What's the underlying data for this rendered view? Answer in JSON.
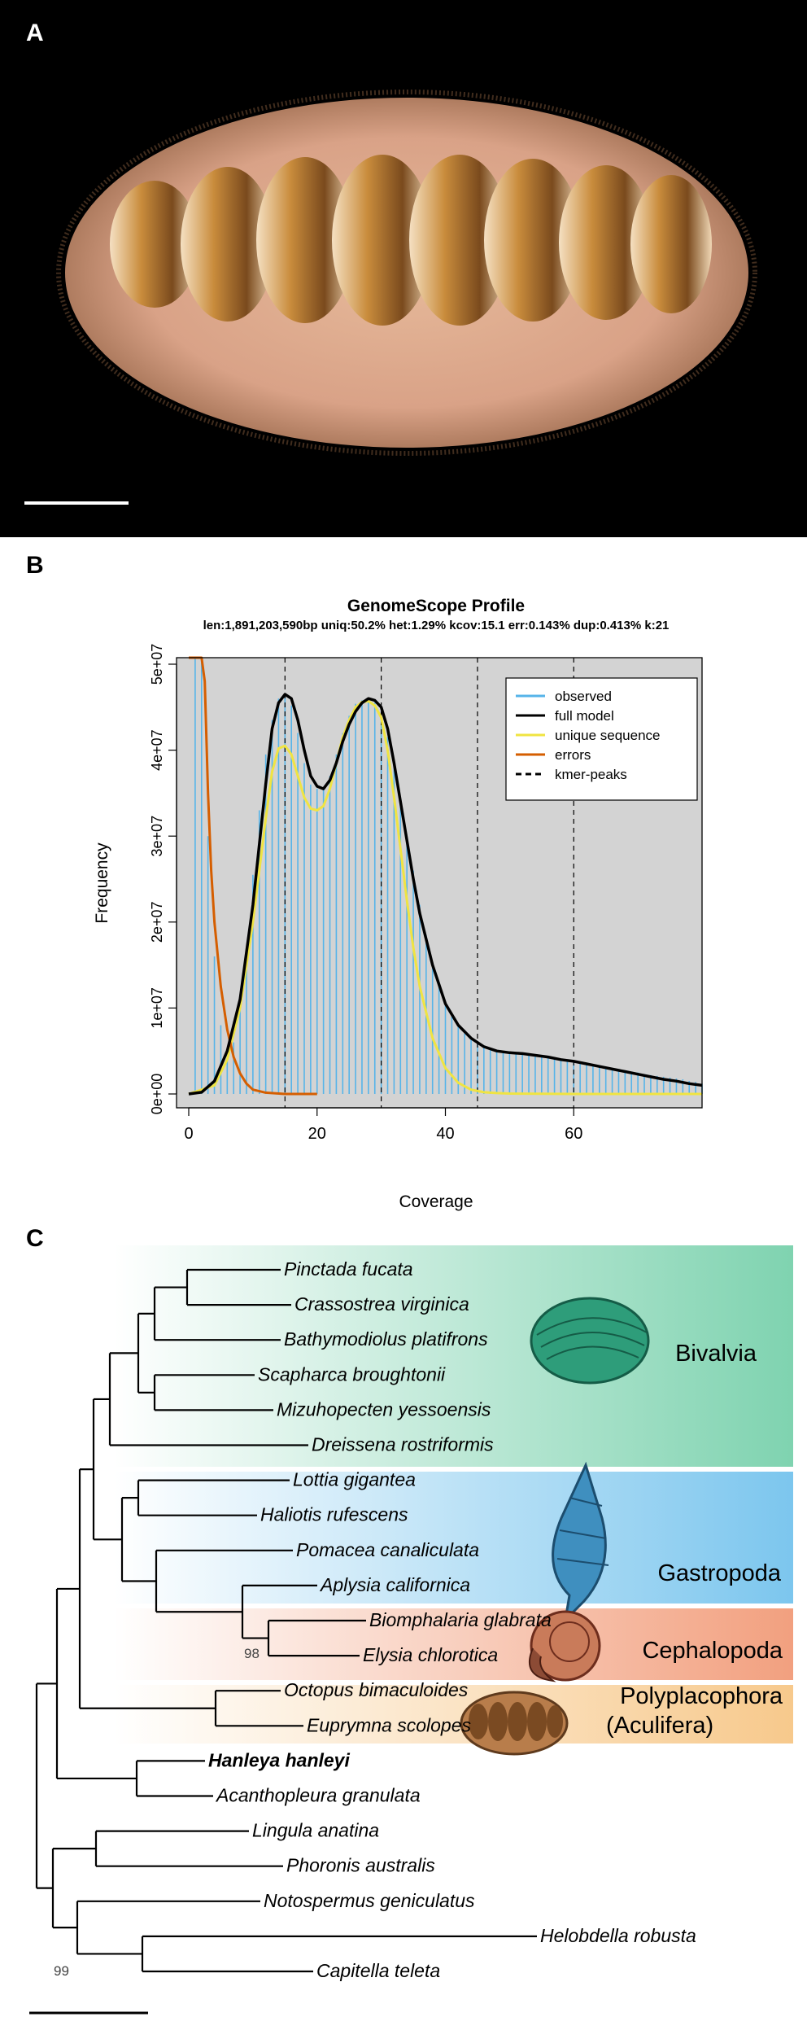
{
  "panels": {
    "a": {
      "label": "A",
      "image": "photo of Hanleya hanleyi chiton, dorsal view, on black background",
      "scale_bar": true
    },
    "b": {
      "label": "B",
      "title": "GenomeScope Profile",
      "subtitle": "len:1,891,203,590bp uniq:50.2%  het:1.29% kcov:15.1 err:0.143%  dup:0.413%  k:21"
    },
    "c": {
      "label": "C"
    }
  },
  "chart_data": {
    "type": "bar",
    "xlabel": "Coverage",
    "ylabel": "Frequency",
    "xlim": [
      0,
      80
    ],
    "ylim": [
      0,
      52000000
    ],
    "x_ticks": [
      0,
      20,
      40,
      60
    ],
    "x_tick_labels": [
      "0",
      "20",
      "40",
      "60"
    ],
    "y_ticks": [
      0,
      10000000,
      20000000,
      30000000,
      40000000,
      50000000
    ],
    "y_tick_labels": [
      "0e+00",
      "1e+07",
      "2e+07",
      "3e+07",
      "4e+07",
      "5e+07"
    ],
    "legend_position": "top-right",
    "legend": [
      {
        "label": "observed",
        "color": "#56b4e9",
        "style": "solid"
      },
      {
        "label": "full model",
        "color": "#000000",
        "style": "solid"
      },
      {
        "label": "unique sequence",
        "color": "#f0e442",
        "style": "solid"
      },
      {
        "label": "errors",
        "color": "#d55e00",
        "style": "solid"
      },
      {
        "label": "kmer-peaks",
        "color": "#000000",
        "style": "dashed"
      }
    ],
    "kmer_peaks": [
      15,
      30,
      45,
      60
    ],
    "series": [
      {
        "name": "observed",
        "x": [
          1,
          2,
          3,
          4,
          5,
          6,
          7,
          8,
          9,
          10,
          11,
          12,
          13,
          14,
          15,
          16,
          17,
          18,
          19,
          20,
          21,
          22,
          23,
          24,
          25,
          26,
          27,
          28,
          29,
          30,
          31,
          32,
          33,
          34,
          35,
          36,
          37,
          38,
          39,
          40,
          41,
          42,
          43,
          44,
          45,
          46,
          47,
          48,
          49,
          50,
          51,
          52,
          53,
          54,
          55,
          56,
          57,
          58,
          59,
          60,
          61,
          62,
          63,
          64,
          65,
          66,
          67,
          68,
          69,
          70,
          71,
          72,
          73,
          74,
          75,
          76,
          77,
          78,
          79,
          80
        ],
        "values": [
          52000000,
          52000000,
          30000000,
          16000000,
          8000000,
          5000000,
          6000000,
          10000000,
          17000000,
          25500000,
          33000000,
          39500000,
          43500000,
          46000000,
          46500000,
          45200000,
          42000000,
          38500000,
          36000000,
          35500000,
          35500000,
          37000000,
          39500000,
          42000000,
          44000000,
          45400000,
          45800000,
          46000000,
          45500000,
          44000000,
          41500000,
          38000000,
          34000000,
          30000000,
          26000000,
          22000000,
          18500000,
          15000000,
          12500000,
          10500000,
          9000000,
          8000000,
          7000000,
          6300000,
          5800000,
          5400000,
          5100000,
          5000000,
          4900000,
          4800000,
          4700000,
          4600000,
          4500000,
          4400000,
          4300000,
          4200000,
          4100000,
          4000000,
          3900000,
          3800000,
          3700000,
          3500000,
          3400000,
          3200000,
          3100000,
          3000000,
          2900000,
          2700000,
          2600000,
          2500000,
          2300000,
          2200000,
          2100000,
          2000000,
          1900000,
          1800000,
          1700000,
          1500000,
          1400000,
          1200000
        ]
      },
      {
        "name": "full model",
        "x": [
          0,
          2,
          4,
          6,
          8,
          10,
          12,
          13,
          14,
          15,
          16,
          17,
          18,
          19,
          20,
          21,
          22,
          23,
          24,
          25,
          26,
          27,
          28,
          29,
          30,
          31,
          32,
          33,
          34,
          35,
          36,
          38,
          40,
          42,
          44,
          46,
          48,
          50,
          52,
          54,
          56,
          58,
          60,
          62,
          64,
          66,
          68,
          70,
          72,
          74,
          76,
          78,
          80
        ],
        "values": [
          0,
          200000,
          1500000,
          5000000,
          11000000,
          22000000,
          36000000,
          42500000,
          45500000,
          46500000,
          46000000,
          43500000,
          40000000,
          37000000,
          35800000,
          35500000,
          36500000,
          38500000,
          41000000,
          43000000,
          44500000,
          45500000,
          46000000,
          45800000,
          45000000,
          42500000,
          38500000,
          34000000,
          29500000,
          25000000,
          21000000,
          15000000,
          10500000,
          8000000,
          6500000,
          5500000,
          5000000,
          4800000,
          4700000,
          4500000,
          4300000,
          4000000,
          3800000,
          3500000,
          3200000,
          2900000,
          2600000,
          2300000,
          2000000,
          1700000,
          1500000,
          1200000,
          1000000
        ]
      },
      {
        "name": "unique sequence",
        "x": [
          0,
          4,
          6,
          8,
          10,
          12,
          13,
          14,
          15,
          16,
          17,
          18,
          19,
          20,
          21,
          22,
          23,
          24,
          25,
          26,
          27,
          28,
          29,
          30,
          31,
          32,
          33,
          34,
          35,
          36,
          38,
          40,
          42,
          44,
          46,
          48,
          50,
          55,
          60,
          70,
          80
        ],
        "values": [
          0,
          1000000,
          4000000,
          10000000,
          20000000,
          32000000,
          37500000,
          40200000,
          40500000,
          39500000,
          37000000,
          34500000,
          33200000,
          33000000,
          33500000,
          35500000,
          38500000,
          41500000,
          43500000,
          45000000,
          45600000,
          45700000,
          45200000,
          43800000,
          40000000,
          34500000,
          28500000,
          22500000,
          17000000,
          12500000,
          6500000,
          3000000,
          1300000,
          500000,
          200000,
          100000,
          50000,
          20000,
          0,
          0,
          0
        ]
      },
      {
        "name": "errors",
        "x": [
          0,
          1,
          2,
          2.5,
          3,
          3.5,
          4,
          5,
          6,
          7,
          8,
          9,
          10,
          12,
          15,
          20
        ],
        "values": [
          52000000,
          52000000,
          52000000,
          48000000,
          35000000,
          26000000,
          20000000,
          12500000,
          7500000,
          4300000,
          2400000,
          1200000,
          500000,
          150000,
          0,
          0
        ]
      }
    ]
  },
  "phylogeny": {
    "bootstrap_labels": [
      "98",
      "99"
    ],
    "taxa": [
      {
        "name": "Pinctada fucata",
        "bold": false
      },
      {
        "name": "Crassostrea virginica",
        "bold": false
      },
      {
        "name": "Bathymodiolus platifrons",
        "bold": false
      },
      {
        "name": "Scapharca broughtonii",
        "bold": false
      },
      {
        "name": "Mizuhopecten yessoensis",
        "bold": false
      },
      {
        "name": "Dreissena rostriformis",
        "bold": false
      },
      {
        "name": "Lottia gigantea",
        "bold": false
      },
      {
        "name": "Haliotis rufescens",
        "bold": false
      },
      {
        "name": "Pomacea canaliculata",
        "bold": false
      },
      {
        "name": "Aplysia californica",
        "bold": false
      },
      {
        "name": "Biomphalaria glabrata",
        "bold": false
      },
      {
        "name": "Elysia chlorotica",
        "bold": false
      },
      {
        "name": "Octopus bimaculoides",
        "bold": false
      },
      {
        "name": "Euprymna scolopes",
        "bold": false
      },
      {
        "name": "Hanleya hanleyi",
        "bold": true
      },
      {
        "name": "Acanthopleura granulata",
        "bold": false
      },
      {
        "name": "Lingula anatina",
        "bold": false
      },
      {
        "name": "Phoronis australis",
        "bold": false
      },
      {
        "name": "Notospermus geniculatus",
        "bold": false
      },
      {
        "name": "Helobdella robusta",
        "bold": false
      },
      {
        "name": "Capitella teleta",
        "bold": false
      }
    ],
    "clades": [
      {
        "label": "Bivalvia",
        "color": "#7fd3b0"
      },
      {
        "label": "Gastropoda",
        "color": "#7cc6ee"
      },
      {
        "label": "Cephalopoda",
        "color": "#f2a07f"
      },
      {
        "label": "Polyplacophora\n(Aculifera)",
        "label_lines": [
          "Polyplacophora",
          "(Aculifera)"
        ],
        "color": "#f7c98c"
      }
    ]
  }
}
